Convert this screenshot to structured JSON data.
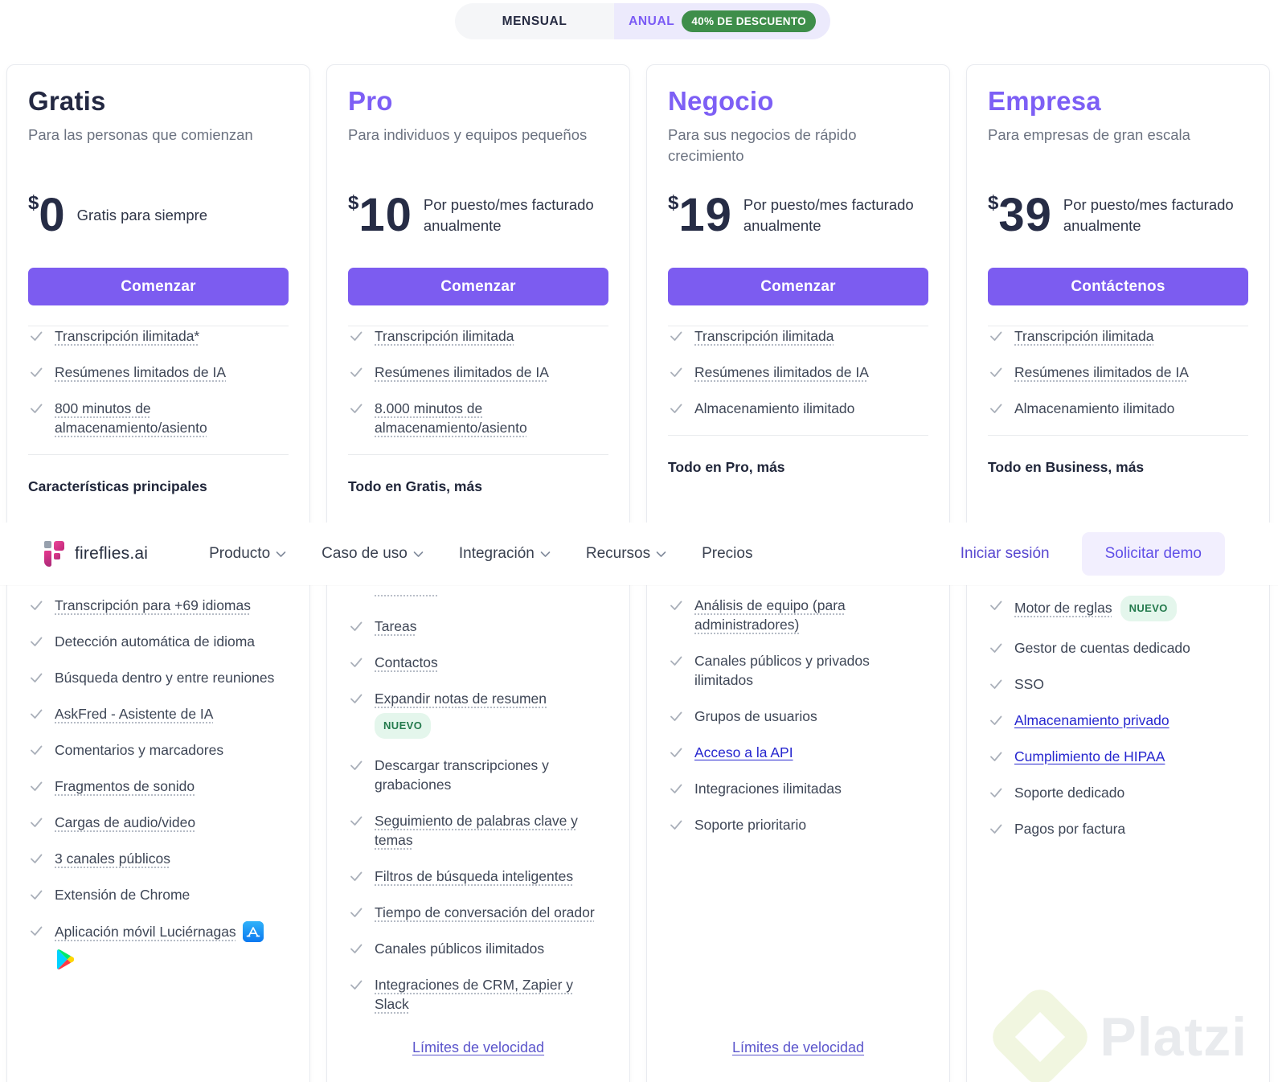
{
  "toggle": {
    "monthly_label": "MENSUAL",
    "annual_label": "ANUAL",
    "discount_badge": "40% DE DESCUENTO"
  },
  "nav": {
    "logo_text": "fireflies.ai",
    "items": [
      {
        "label": "Producto",
        "has_menu": true
      },
      {
        "label": "Caso de uso",
        "has_menu": true
      },
      {
        "label": "Integración",
        "has_menu": true
      },
      {
        "label": "Recursos",
        "has_menu": true
      },
      {
        "label": "Precios",
        "has_menu": false
      }
    ],
    "login_label": "Iniciar sesión",
    "demo_label": "Solicitar demo"
  },
  "plans": [
    {
      "name": "Gratis",
      "accent": false,
      "tagline": "Para las personas que comienzan",
      "currency": "$",
      "price": "0",
      "price_note": "Gratis para siempre",
      "cta_label": "Comenzar",
      "features_top": [
        {
          "text": "Transcripción ilimitada*",
          "style": "dotted"
        },
        {
          "text": "Resúmenes limitados de IA",
          "style": "dotted"
        },
        {
          "text": "800 minutos de almacenamiento/asiento",
          "style": "dotted"
        }
      ],
      "section_title": "Características principales",
      "features_lower": [
        {
          "text": "Transcripción para +69 idiomas",
          "style": "dotted"
        },
        {
          "text": "Detección automática de idioma",
          "style": "plain"
        },
        {
          "text": "Búsqueda dentro y entre reuniones",
          "style": "plain"
        },
        {
          "text": "AskFred - Asistente de IA",
          "style": "dotted"
        },
        {
          "text": "Comentarios y marcadores",
          "style": "plain"
        },
        {
          "text": "Fragmentos de sonido",
          "style": "dotted"
        },
        {
          "text": "Cargas de audio/video",
          "style": "dotted"
        },
        {
          "text": "3 canales públicos",
          "style": "dotted"
        },
        {
          "text": "Extensión de Chrome",
          "style": "plain"
        },
        {
          "text": "Aplicación móvil Luciérnagas",
          "style": "dotted",
          "apps": true
        }
      ],
      "rate_link_label": null
    },
    {
      "name": "Pro",
      "accent": true,
      "tagline": "Para individuos y equipos pequeños",
      "currency": "$",
      "price": "10",
      "price_note": "Por puesto/mes facturado anualmente",
      "cta_label": "Comenzar",
      "features_top": [
        {
          "text": "Transcripción ilimitada",
          "style": "dotted"
        },
        {
          "text": "Resúmenes ilimitados de IA",
          "style": "dotted"
        },
        {
          "text": "8.000 minutos de almacenamiento/asiento",
          "style": "dotted"
        }
      ],
      "section_title": "Todo en Gratis, más",
      "features_lower": [
        {
          "fragment": true
        },
        {
          "text": "Tareas",
          "style": "dotted"
        },
        {
          "text": "Contactos",
          "style": "dotted"
        },
        {
          "text": "Expandir notas de resumen",
          "style": "dotted",
          "badge": "NUEVO",
          "badge_pos": "below"
        },
        {
          "text": "Descargar transcripciones y grabaciones",
          "style": "plain"
        },
        {
          "text": "Seguimiento de palabras clave y temas",
          "style": "dotted"
        },
        {
          "text": "Filtros de búsqueda inteligentes",
          "style": "dotted"
        },
        {
          "text": "Tiempo de conversación del orador",
          "style": "dotted"
        },
        {
          "text": "Canales públicos ilimitados",
          "style": "plain"
        },
        {
          "text": "Integraciones de CRM, Zapier y Slack",
          "style": "dotted"
        }
      ],
      "rate_link_label": "Límites de velocidad"
    },
    {
      "name": "Negocio",
      "accent": true,
      "tagline": "Para sus negocios de rápido crecimiento",
      "currency": "$",
      "price": "19",
      "price_note": "Por puesto/mes facturado anualmente",
      "cta_label": "Comenzar",
      "features_top": [
        {
          "text": "Transcripción ilimitada",
          "style": "dotted"
        },
        {
          "text": "Resúmenes ilimitados de IA",
          "style": "dotted"
        },
        {
          "text": "Almacenamiento ilimitado",
          "style": "plain"
        }
      ],
      "section_title": "Todo en Pro, más",
      "features_lower": [
        {
          "text": "Análisis de equipo (para administradores)",
          "style": "dotted"
        },
        {
          "text": "Canales públicos y privados ilimitados",
          "style": "plain"
        },
        {
          "text": "Grupos de usuarios",
          "style": "plain"
        },
        {
          "text": "Acceso a la API",
          "style": "link"
        },
        {
          "text": "Integraciones ilimitadas",
          "style": "plain"
        },
        {
          "text": "Soporte prioritario",
          "style": "plain"
        }
      ],
      "rate_link_label": "Límites de velocidad"
    },
    {
      "name": "Empresa",
      "accent": true,
      "tagline": "Para empresas de gran escala",
      "currency": "$",
      "price": "39",
      "price_note": "Por puesto/mes facturado anualmente",
      "cta_label": "Contáctenos",
      "features_top": [
        {
          "text": "Transcripción ilimitada",
          "style": "dotted"
        },
        {
          "text": "Resúmenes ilimitados de IA",
          "style": "dotted"
        },
        {
          "text": "Almacenamiento ilimitado",
          "style": "plain"
        }
      ],
      "section_title": "Todo en Business, más",
      "features_lower": [
        {
          "text": "Motor de reglas",
          "style": "dotted",
          "badge": "NUEVO",
          "badge_pos": "inline"
        },
        {
          "text": "Gestor de cuentas dedicado",
          "style": "plain"
        },
        {
          "text": "SSO",
          "style": "plain"
        },
        {
          "text": "Almacenamiento privado",
          "style": "link"
        },
        {
          "text": "Cumplimiento de HIPAA",
          "style": "link"
        },
        {
          "text": "Soporte dedicado",
          "style": "plain"
        },
        {
          "text": "Pagos por factura",
          "style": "plain"
        }
      ],
      "rate_link_label": null
    }
  ],
  "watermark_text": "Platzi",
  "colors": {
    "accent_purple": "#7d5ff5",
    "button_purple": "#7c5cf0",
    "link_blue": "#2626cf",
    "discount_green": "#3e8e4a",
    "new_badge_bg": "#e4f6ec",
    "new_badge_text": "#247a4d"
  }
}
